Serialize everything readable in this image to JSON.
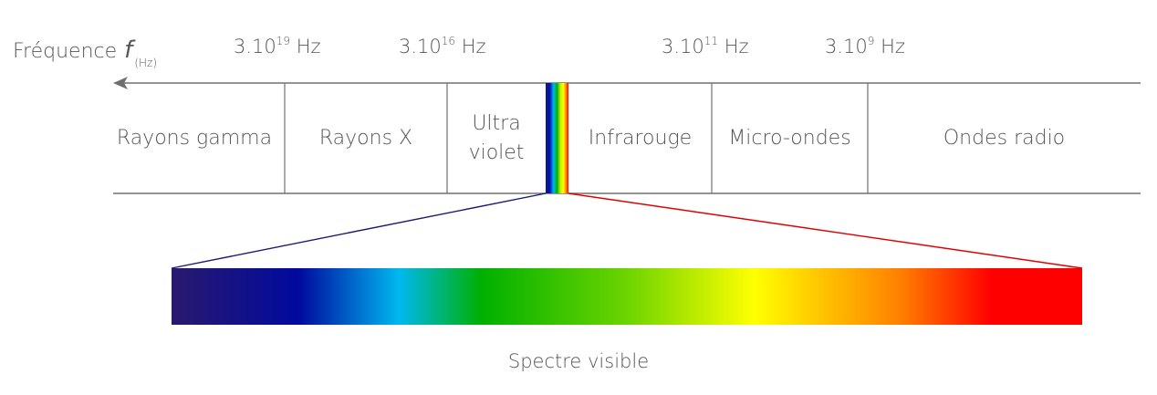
{
  "frequency_axis": {
    "label": "Fréquence",
    "symbol": "f",
    "unit": "(Hz)",
    "direction": "increasing-left"
  },
  "frequency_ticks": [
    {
      "mantissa": "3.10",
      "exponent": "19",
      "unit": "Hz"
    },
    {
      "mantissa": "3.10",
      "exponent": "16",
      "unit": "Hz"
    },
    {
      "mantissa": "3.10",
      "exponent": "11",
      "unit": "Hz"
    },
    {
      "mantissa": "3.10",
      "exponent": "9",
      "unit": "Hz"
    }
  ],
  "bands": {
    "gamma": "Rayons gamma",
    "xray": "Rayons X",
    "uv_line1": "Ultra",
    "uv_line2": "violet",
    "infrared": "Infrarouge",
    "microwave": "Micro-ondes",
    "radio": "Ondes radio"
  },
  "visible_spectrum": {
    "caption": "Spectre visible",
    "colors": [
      "#2a1a6e",
      "#000a9e",
      "#00b8f0",
      "#00b000",
      "#a6e600",
      "#ffff00",
      "#ff8000",
      "#ff0000"
    ]
  },
  "line_color": "#707070",
  "connector_left_color": "#1a1a6e",
  "connector_right_color": "#e00000"
}
